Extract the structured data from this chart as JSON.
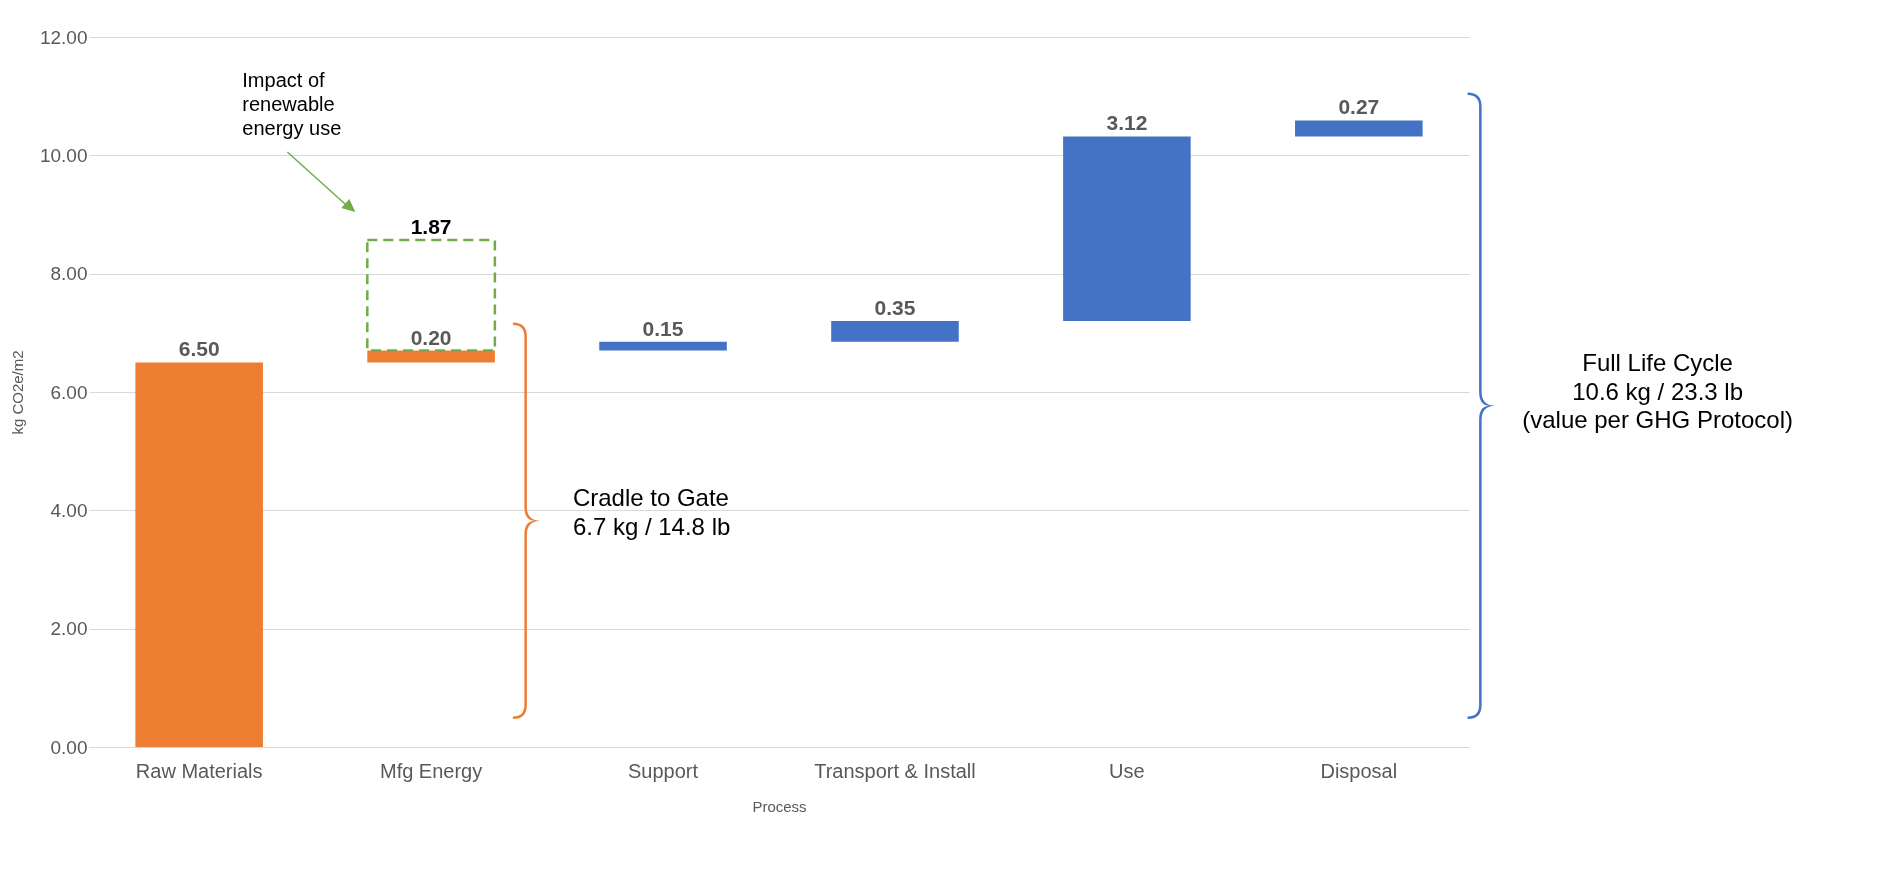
{
  "chart_data": {
    "type": "bar",
    "xlabel": "Process",
    "ylabel": "kg CO2e/m2",
    "categories": [
      "Raw Materials",
      "Mfg Energy",
      "Support",
      "Transport & Install",
      "Use",
      "Disposal"
    ],
    "series": [
      {
        "color": "#ed7d31",
        "values": [
          6.5,
          0.2,
          null,
          null,
          null,
          null
        ],
        "base": [
          0,
          6.5,
          null,
          null,
          null,
          null
        ],
        "value_labels": [
          "6.50",
          "0.20",
          null,
          null,
          null,
          null
        ]
      },
      {
        "color": "#4472c4",
        "values": [
          null,
          null,
          0.15,
          0.35,
          3.12,
          0.27
        ],
        "base": [
          null,
          null,
          6.7,
          6.85,
          7.2,
          10.32
        ],
        "value_labels": [
          null,
          null,
          "0.15",
          "0.35",
          "3.12",
          "0.27"
        ]
      },
      {
        "color": "#70ad47",
        "line_style": "dashed",
        "values": [
          null,
          1.87,
          null,
          null,
          null,
          null
        ],
        "base": [
          null,
          6.7,
          null,
          null,
          null,
          null
        ],
        "value_labels": [
          null,
          "1.87",
          null,
          null,
          null,
          null
        ]
      }
    ],
    "ylim": [
      0,
      12
    ],
    "yticks": [
      {
        "value": 0,
        "label": "0.00"
      },
      {
        "value": 2,
        "label": "2.00"
      },
      {
        "value": 4,
        "label": "4.00"
      },
      {
        "value": 6,
        "label": "6.00"
      },
      {
        "value": 8,
        "label": "8.00"
      },
      {
        "value": 10,
        "label": "10.00"
      },
      {
        "value": 12,
        "label": "12.00"
      }
    ],
    "grid": "y",
    "annotations": [
      "Impact of\nrenewable\nenergy use",
      "Cradle to Gate\n6.7 kg / 14.8 lb",
      "Full Life Cycle\n10.6 kg / 23.3 lb\n(value per GHG Protocol)"
    ]
  }
}
